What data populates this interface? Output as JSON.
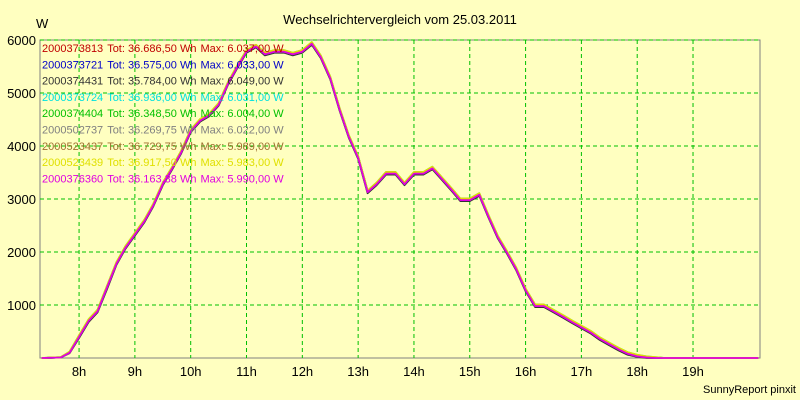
{
  "chart_data": {
    "type": "line",
    "title": "Wechselrichtervergleich vom 25.03.2011",
    "ylabel": "W",
    "xlabel": "",
    "xlim": [
      7.3,
      20.2
    ],
    "ylim": [
      0,
      6000
    ],
    "x_ticks": [
      {
        "value": 8,
        "label": "8h"
      },
      {
        "value": 9,
        "label": "9h"
      },
      {
        "value": 10,
        "label": "10h"
      },
      {
        "value": 11,
        "label": "11h"
      },
      {
        "value": 12,
        "label": "12h"
      },
      {
        "value": 13,
        "label": "13h"
      },
      {
        "value": 14,
        "label": "14h"
      },
      {
        "value": 15,
        "label": "15h"
      },
      {
        "value": 16,
        "label": "16h"
      },
      {
        "value": 17,
        "label": "17h"
      },
      {
        "value": 18,
        "label": "18h"
      },
      {
        "value": 19,
        "label": "19h"
      }
    ],
    "y_ticks": [
      1000,
      2000,
      3000,
      4000,
      5000,
      6000
    ],
    "grid": true,
    "legend_position": "top-left",
    "x": [
      7.33,
      7.67,
      7.83,
      8.0,
      8.17,
      8.33,
      8.5,
      8.67,
      8.83,
      9.0,
      9.17,
      9.33,
      9.5,
      9.67,
      9.83,
      10.0,
      10.17,
      10.33,
      10.5,
      10.67,
      10.83,
      11.0,
      11.17,
      11.33,
      11.5,
      11.67,
      11.83,
      12.0,
      12.17,
      12.33,
      12.5,
      12.67,
      12.83,
      13.0,
      13.17,
      13.33,
      13.5,
      13.67,
      13.83,
      14.0,
      14.17,
      14.33,
      14.5,
      14.67,
      14.83,
      15.0,
      15.17,
      15.33,
      15.5,
      15.67,
      15.83,
      16.0,
      16.17,
      16.33,
      16.5,
      16.67,
      16.83,
      17.0,
      17.17,
      17.33,
      17.5,
      17.67,
      17.83,
      18.0,
      18.17,
      18.33,
      18.5,
      18.67,
      18.83,
      19.0,
      19.17,
      19.33,
      19.5,
      19.67,
      19.83,
      20.0,
      20.17
    ],
    "series": [
      {
        "name": "2000373813",
        "total": "Tot: 36.686,50 Wh",
        "max": "Max: 6.037,00 W",
        "color": "#c00000",
        "values": [
          0,
          10,
          110,
          420,
          720,
          900,
          1350,
          1800,
          2100,
          2350,
          2600,
          2900,
          3300,
          3600,
          3900,
          4300,
          4500,
          4600,
          4800,
          5200,
          5500,
          5800,
          5900,
          5750,
          5800,
          5800,
          5750,
          5800,
          5950,
          5700,
          5300,
          4700,
          4200,
          3800,
          3150,
          3300,
          3500,
          3500,
          3300,
          3500,
          3500,
          3600,
          3400,
          3200,
          3000,
          3000,
          3100,
          2700,
          2300,
          2000,
          1700,
          1300,
          1000,
          1000,
          900,
          800,
          700,
          600,
          500,
          380,
          280,
          180,
          100,
          50,
          20,
          10,
          0,
          0,
          0,
          0,
          0,
          0,
          0,
          0,
          0,
          0,
          0
        ]
      },
      {
        "name": "2000373721",
        "total": "Tot: 36.575,00 Wh",
        "max": "Max: 6.033,00 W",
        "color": "#0000c8",
        "values": [
          0,
          10,
          100,
          400,
          700,
          880,
          1320,
          1780,
          2080,
          2330,
          2580,
          2880,
          3280,
          3580,
          3880,
          4280,
          4480,
          4580,
          4780,
          5180,
          5480,
          5780,
          5880,
          5730,
          5780,
          5780,
          5730,
          5780,
          5930,
          5680,
          5280,
          4680,
          4180,
          3780,
          3130,
          3280,
          3480,
          3480,
          3280,
          3480,
          3480,
          3580,
          3380,
          3180,
          2980,
          2980,
          3080,
          2680,
          2280,
          1980,
          1680,
          1280,
          980,
          980,
          880,
          780,
          680,
          580,
          480,
          360,
          260,
          160,
          80,
          30,
          10,
          0,
          0,
          0,
          0,
          0,
          0,
          0,
          0,
          0,
          0,
          0,
          0
        ]
      },
      {
        "name": "2000374431",
        "total": "Tot: 35.784,00 Wh",
        "max": "Max: 6.049,00 W",
        "color": "#333333",
        "values": [
          0,
          10,
          90,
          380,
          680,
          860,
          1300,
          1760,
          2060,
          2310,
          2560,
          2860,
          3260,
          3560,
          3860,
          4260,
          4460,
          4560,
          4760,
          5160,
          5460,
          5760,
          5860,
          5710,
          5760,
          5760,
          5710,
          5760,
          5910,
          5660,
          5260,
          4660,
          4160,
          3760,
          3110,
          3260,
          3460,
          3460,
          3260,
          3460,
          3460,
          3560,
          3360,
          3160,
          2960,
          2960,
          3060,
          2660,
          2260,
          1960,
          1660,
          1260,
          960,
          960,
          860,
          760,
          660,
          560,
          460,
          340,
          240,
          140,
          60,
          20,
          0,
          0,
          0,
          0,
          0,
          0,
          0,
          0,
          0,
          0,
          0,
          0,
          0
        ]
      },
      {
        "name": "2000373724",
        "total": "Tot: 36.936,00 Wh",
        "max": "Max: 6.031,00 W",
        "color": "#00e0e0",
        "values": [
          0,
          15,
          120,
          430,
          730,
          910,
          1360,
          1810,
          2110,
          2360,
          2610,
          2910,
          3310,
          3610,
          3910,
          4310,
          4510,
          4610,
          4810,
          5210,
          5510,
          5810,
          5910,
          5760,
          5810,
          5810,
          5760,
          5810,
          5960,
          5710,
          5310,
          4710,
          4210,
          3810,
          3160,
          3310,
          3510,
          3510,
          3310,
          3510,
          3510,
          3610,
          3410,
          3210,
          3010,
          3010,
          3110,
          2710,
          2310,
          2010,
          1710,
          1310,
          1010,
          1010,
          910,
          810,
          710,
          610,
          510,
          390,
          290,
          190,
          110,
          60,
          30,
          15,
          0,
          0,
          0,
          0,
          0,
          0,
          0,
          0,
          0,
          0,
          0
        ]
      },
      {
        "name": "2000374404",
        "total": "Tot: 36.348,50 Wh",
        "max": "Max: 6.004,00 W",
        "color": "#00c000",
        "values": [
          0,
          10,
          105,
          410,
          710,
          890,
          1340,
          1790,
          2090,
          2340,
          2590,
          2890,
          3290,
          3590,
          3890,
          4290,
          4490,
          4590,
          4790,
          5190,
          5490,
          5790,
          5890,
          5740,
          5790,
          5790,
          5740,
          5790,
          5940,
          5690,
          5290,
          4690,
          4190,
          3790,
          3140,
          3290,
          3490,
          3490,
          3290,
          3490,
          3490,
          3590,
          3390,
          3190,
          2990,
          2990,
          3090,
          2690,
          2290,
          1990,
          1690,
          1290,
          990,
          990,
          890,
          790,
          690,
          590,
          490,
          370,
          270,
          170,
          90,
          40,
          15,
          5,
          0,
          0,
          0,
          0,
          0,
          0,
          0,
          0,
          0,
          0,
          0
        ]
      },
      {
        "name": "2000502737",
        "total": "Tot: 36.269,75 Wh",
        "max": "Max: 6.022,00 W",
        "color": "#808080",
        "values": [
          0,
          10,
          100,
          400,
          700,
          880,
          1330,
          1780,
          2080,
          2330,
          2580,
          2880,
          3280,
          3580,
          3880,
          4280,
          4480,
          4580,
          4780,
          5180,
          5480,
          5780,
          5880,
          5730,
          5780,
          5780,
          5730,
          5780,
          5930,
          5680,
          5280,
          4680,
          4180,
          3780,
          3130,
          3280,
          3480,
          3480,
          3280,
          3480,
          3480,
          3580,
          3380,
          3180,
          2980,
          2980,
          3080,
          2680,
          2280,
          1980,
          1680,
          1280,
          980,
          980,
          880,
          780,
          680,
          580,
          480,
          360,
          260,
          160,
          80,
          30,
          10,
          0,
          0,
          0,
          0,
          0,
          0,
          0,
          0,
          0,
          0,
          0,
          0
        ]
      },
      {
        "name": "2000523437",
        "total": "Tot: 36.729,75 Wh",
        "max": "Max: 5.989,00 W",
        "color": "#a07030",
        "values": [
          0,
          15,
          115,
          425,
          725,
          905,
          1355,
          1805,
          2105,
          2355,
          2605,
          2905,
          3305,
          3605,
          3905,
          4305,
          4505,
          4605,
          4805,
          5205,
          5505,
          5805,
          5905,
          5755,
          5805,
          5805,
          5755,
          5805,
          5955,
          5705,
          5305,
          4705,
          4205,
          3805,
          3155,
          3305,
          3505,
          3505,
          3305,
          3505,
          3505,
          3605,
          3405,
          3205,
          3005,
          3005,
          3105,
          2705,
          2305,
          2005,
          1705,
          1305,
          1005,
          1005,
          905,
          805,
          705,
          605,
          505,
          385,
          285,
          185,
          105,
          55,
          25,
          10,
          0,
          0,
          0,
          0,
          0,
          0,
          0,
          0,
          0,
          0,
          0
        ]
      },
      {
        "name": "2000523439",
        "total": "Tot: 36.917,50 Wh",
        "max": "Max: 5.983,00 W",
        "color": "#e0e000",
        "values": [
          0,
          15,
          120,
          430,
          730,
          910,
          1360,
          1810,
          2110,
          2360,
          2610,
          2910,
          3310,
          3610,
          3910,
          4310,
          4510,
          4610,
          4810,
          5210,
          5510,
          5810,
          5910,
          5760,
          5810,
          5810,
          5760,
          5810,
          5960,
          5710,
          5310,
          4710,
          4210,
          3810,
          3160,
          3310,
          3510,
          3510,
          3310,
          3510,
          3510,
          3610,
          3410,
          3210,
          3010,
          3010,
          3110,
          2710,
          2310,
          2010,
          1710,
          1310,
          1010,
          1010,
          910,
          810,
          710,
          610,
          510,
          390,
          290,
          190,
          110,
          60,
          30,
          15,
          0,
          0,
          0,
          0,
          0,
          0,
          0,
          0,
          0,
          0,
          0
        ]
      },
      {
        "name": "2000376360",
        "total": "Tot: 36.163,38 Wh",
        "max": "Max: 5.990,00 W",
        "color": "#e000e0",
        "values": [
          0,
          10,
          100,
          400,
          700,
          880,
          1330,
          1780,
          2080,
          2330,
          2580,
          2880,
          3280,
          3580,
          3880,
          4280,
          4480,
          4580,
          4780,
          5180,
          5480,
          5780,
          5880,
          5730,
          5780,
          5780,
          5730,
          5780,
          5930,
          5680,
          5280,
          4680,
          4180,
          3780,
          3130,
          3280,
          3480,
          3480,
          3280,
          3480,
          3480,
          3580,
          3380,
          3180,
          2980,
          2980,
          3080,
          2680,
          2280,
          1980,
          1680,
          1280,
          980,
          980,
          880,
          780,
          680,
          580,
          480,
          360,
          260,
          160,
          80,
          30,
          10,
          0,
          0,
          0,
          0,
          0,
          0,
          0,
          0,
          0,
          0,
          0,
          0
        ]
      }
    ]
  },
  "footer": "SunnyReport pinxit",
  "colors": {
    "background": "#ffffc0",
    "plot_area": "#ffffc0",
    "grid": "#00c000",
    "axis": "#000000"
  }
}
